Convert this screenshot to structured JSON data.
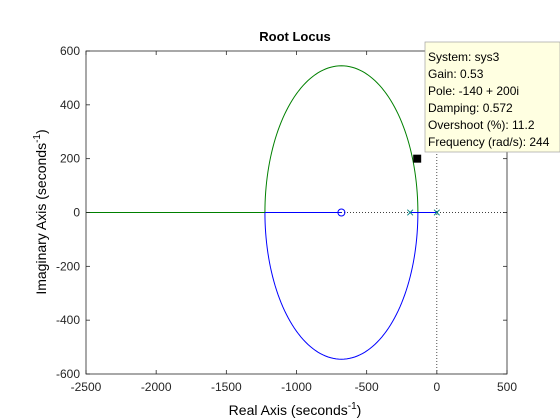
{
  "chart_data": {
    "type": "root-locus",
    "title": "Root Locus",
    "xlabel_main": "Real Axis (seconds",
    "xlabel_sup": "-1",
    "xlabel_tail": ")",
    "ylabel_main": "Imaginary Axis (seconds",
    "ylabel_sup": "-1",
    "ylabel_tail": ")",
    "xlim": [
      -2500,
      500
    ],
    "ylim": [
      -600,
      600
    ],
    "xticks": [
      -2500,
      -2000,
      -1500,
      -1000,
      -500,
      0,
      500
    ],
    "yticks": [
      -600,
      -400,
      -200,
      0,
      200,
      400,
      600
    ],
    "grid": false,
    "colors": {
      "upper_branch": "#008000",
      "lower_branch": "#0000ff",
      "real_axis_branch": "#0000ff",
      "left_real_branch": "#008000",
      "zero_marker": "#0000ff",
      "pole_marker": "#008080",
      "datatip_bg": "#ffffe1"
    },
    "zeros": [
      {
        "x": -680,
        "y": 0
      }
    ],
    "poles": [
      {
        "x": -190,
        "y": 0
      },
      {
        "x": 0,
        "y": 0
      }
    ],
    "locus_circle": {
      "center": -680,
      "radius": 545
    },
    "real_axis_segments": [
      {
        "from": -2500,
        "to": -1225,
        "color": "left_real_branch"
      },
      {
        "from": -1225,
        "to": -680,
        "color": "real_axis_branch"
      },
      {
        "from": -190,
        "to": 0,
        "color": "real_axis_branch"
      }
    ],
    "selected_point": {
      "x": -140,
      "y": 200
    },
    "datatip": {
      "lines": [
        "System: sys3",
        "Gain: 0.53",
        "Pole: -140 + 200i",
        "Damping: 0.572",
        "Overshoot (%): 11.2",
        "Frequency (rad/s): 244"
      ]
    }
  }
}
